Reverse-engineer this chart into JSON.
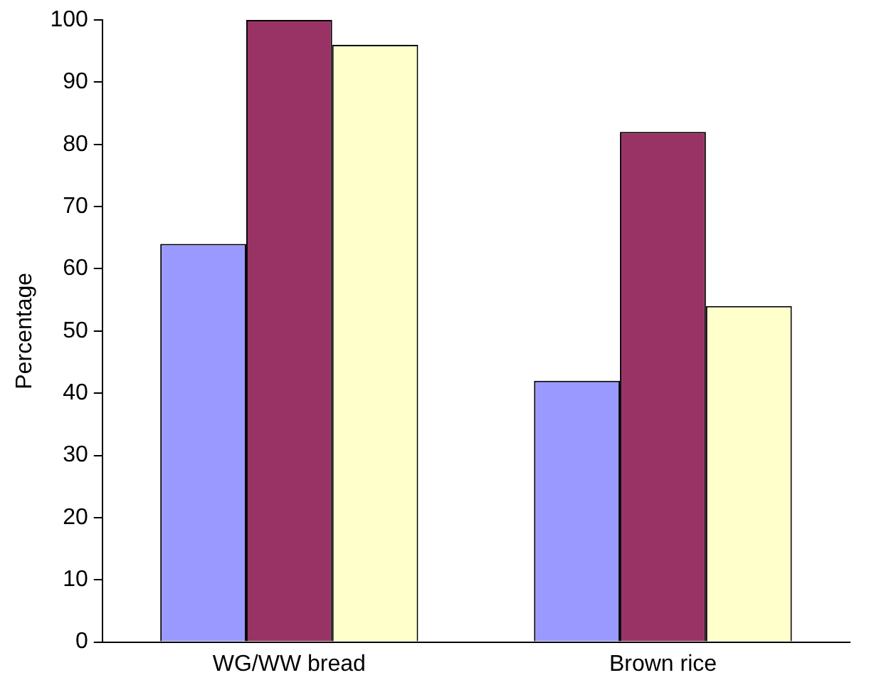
{
  "chart_data": {
    "type": "bar",
    "ylabel": "Percentage",
    "categories": [
      "WG/WW bread",
      "Brown rice"
    ],
    "series": [
      {
        "color": "#9999ff",
        "values": [
          64,
          42
        ]
      },
      {
        "color": "#993366",
        "values": [
          100,
          82
        ]
      },
      {
        "color": "#ffffcc",
        "values": [
          96,
          54
        ]
      }
    ],
    "ylim": [
      0,
      100
    ],
    "yticks": [
      0,
      10,
      20,
      30,
      40,
      50,
      60,
      70,
      80,
      90,
      100
    ],
    "grid": false,
    "legend": false
  }
}
